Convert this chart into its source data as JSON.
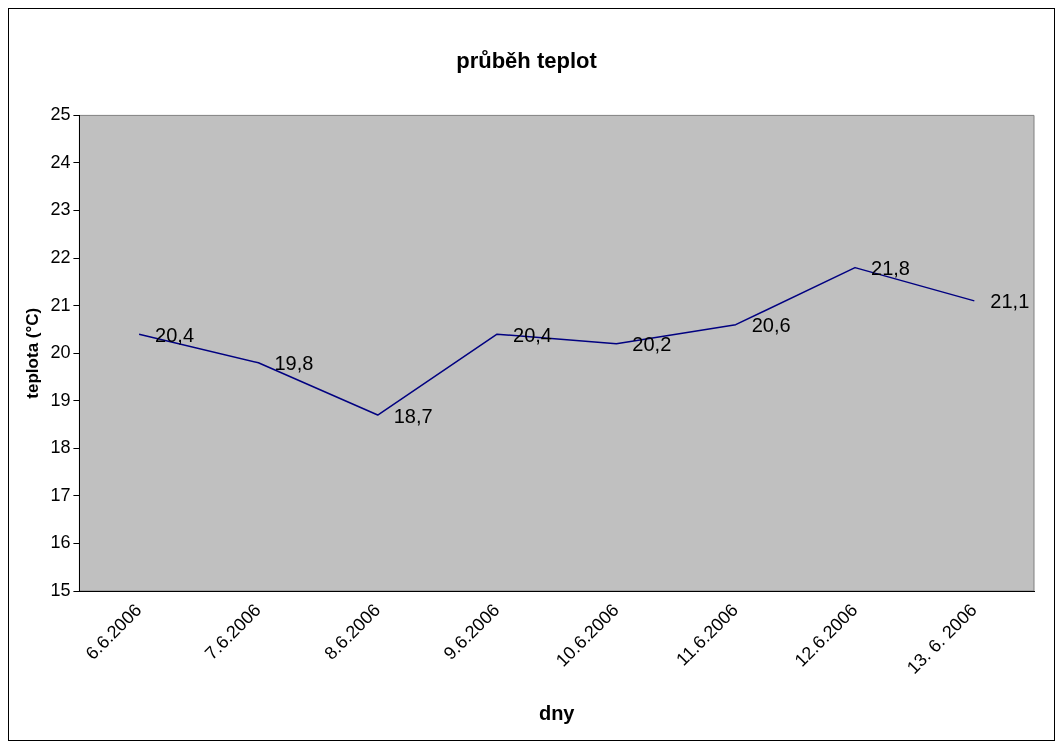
{
  "chart_data": {
    "type": "line",
    "title": "průběh teplot",
    "xlabel": "dny",
    "ylabel": "teplota (°C)",
    "categories": [
      "6.6.2006",
      "7.6.2006",
      "8.6.2006",
      "9.6.2006",
      "10.6.2006",
      "11.6.2006",
      "12.6.2006",
      "13. 6. 2006"
    ],
    "series": [
      {
        "color": "#000080",
        "values": [
          20.4,
          19.8,
          18.7,
          20.4,
          20.2,
          20.6,
          21.8,
          21.1
        ],
        "value_labels": [
          "20,4",
          "19,8",
          "18,7",
          "20,4",
          "20,2",
          "20,6",
          "21,8",
          "21,1"
        ]
      }
    ],
    "ylim": [
      15,
      25
    ],
    "yticks": [
      15,
      16,
      17,
      18,
      19,
      20,
      21,
      22,
      23,
      24,
      25
    ],
    "grid": false,
    "legend": false,
    "marker": "none",
    "line_style": "solid"
  }
}
